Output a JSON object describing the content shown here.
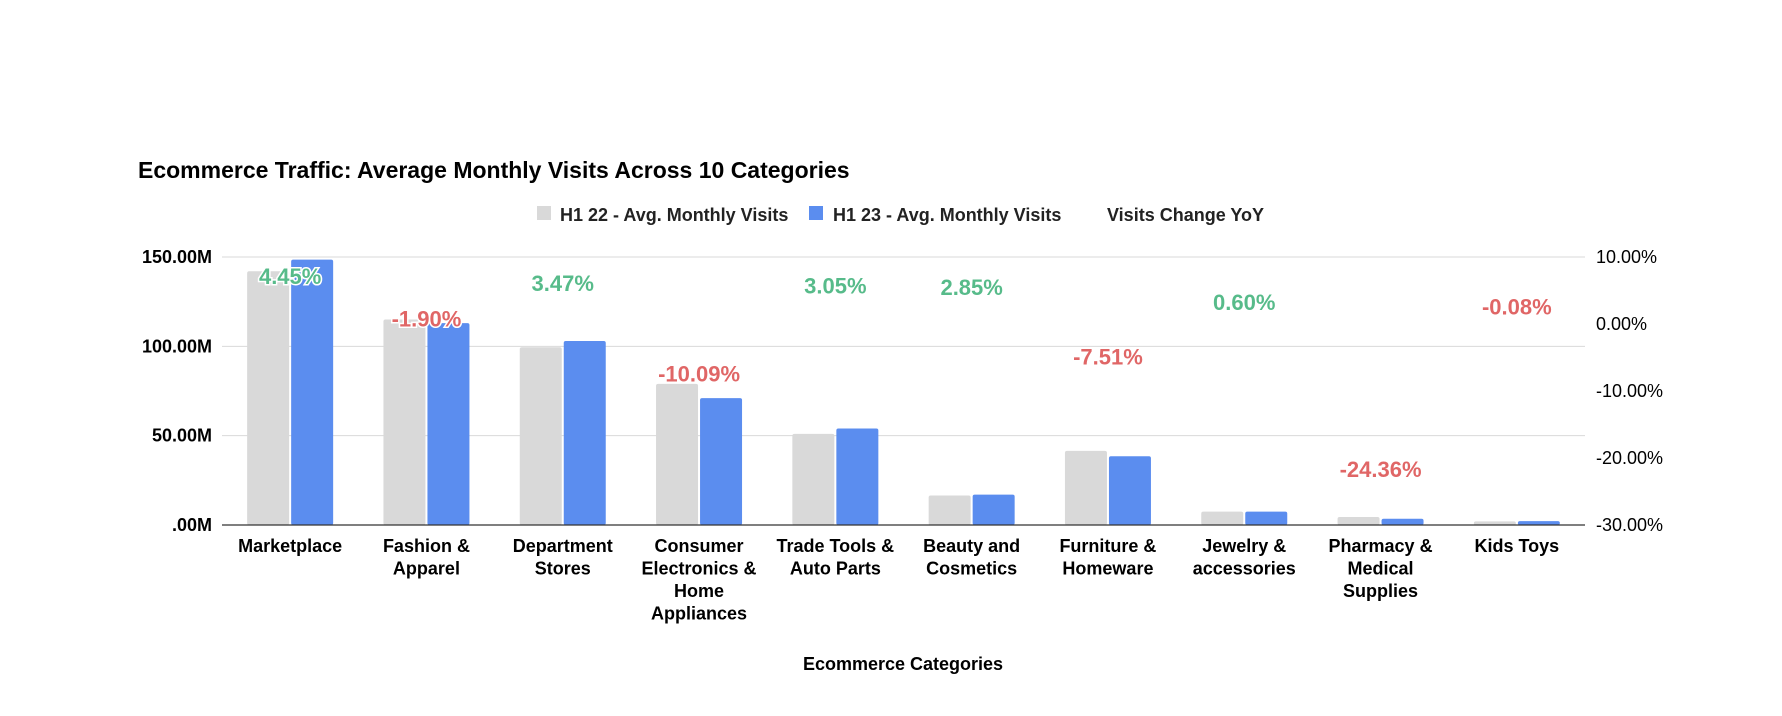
{
  "chart_data": {
    "type": "bar",
    "title": "Ecommerce Traffic: Average Monthly Visits Across 10 Categories",
    "xlabel": "Ecommerce Categories",
    "ylabel": "",
    "categories": [
      [
        "Marketplace"
      ],
      [
        "Fashion &",
        "Apparel"
      ],
      [
        "Department",
        "Stores"
      ],
      [
        "Consumer",
        "Electronics &",
        "Home",
        "Appliances"
      ],
      [
        "Trade Tools &",
        "Auto Parts"
      ],
      [
        "Beauty and",
        "Cosmetics"
      ],
      [
        "Furniture &",
        "Homeware"
      ],
      [
        "Jewelry &",
        "accessories"
      ],
      [
        "Pharmacy &",
        "Medical",
        "Supplies"
      ],
      [
        "Kids Toys"
      ]
    ],
    "series": [
      {
        "name": "H1 22 - Avg. Monthly Visits",
        "color": "#d9d9d9",
        "values": [
          142,
          115,
          99.5,
          79,
          51,
          16.5,
          41.5,
          7.5,
          4.5,
          2
        ]
      },
      {
        "name": "H1 23 - Avg. Monthly Visits",
        "color": "#5b8def",
        "values": [
          148.5,
          113,
          103,
          71,
          54,
          17,
          38.5,
          7.5,
          3.5,
          2.2
        ]
      }
    ],
    "yoy_series": {
      "name": "Visits Change YoY",
      "values": [
        4.45,
        -1.9,
        3.47,
        -10.09,
        3.05,
        2.85,
        -7.51,
        0.6,
        -24.36,
        -0.08
      ],
      "labels": [
        "4.45%",
        "-1.90%",
        "3.47%",
        "-10.09%",
        "3.05%",
        "2.85%",
        "-7.51%",
        "0.60%",
        "-24.36%",
        "-0.08%"
      ],
      "positive_color": "#57bb8a",
      "negative_color": "#e06666"
    },
    "ylim": [
      0,
      150
    ],
    "yticks": [
      ".00M",
      "50.00M",
      "100.00M",
      "150.00M"
    ],
    "y2lim": [
      -30,
      10
    ],
    "y2ticks": [
      "-30.00%",
      "-20.00%",
      "-10.00%",
      "0.00%",
      "10.00%"
    ],
    "grid": true,
    "legend_position": "top"
  }
}
